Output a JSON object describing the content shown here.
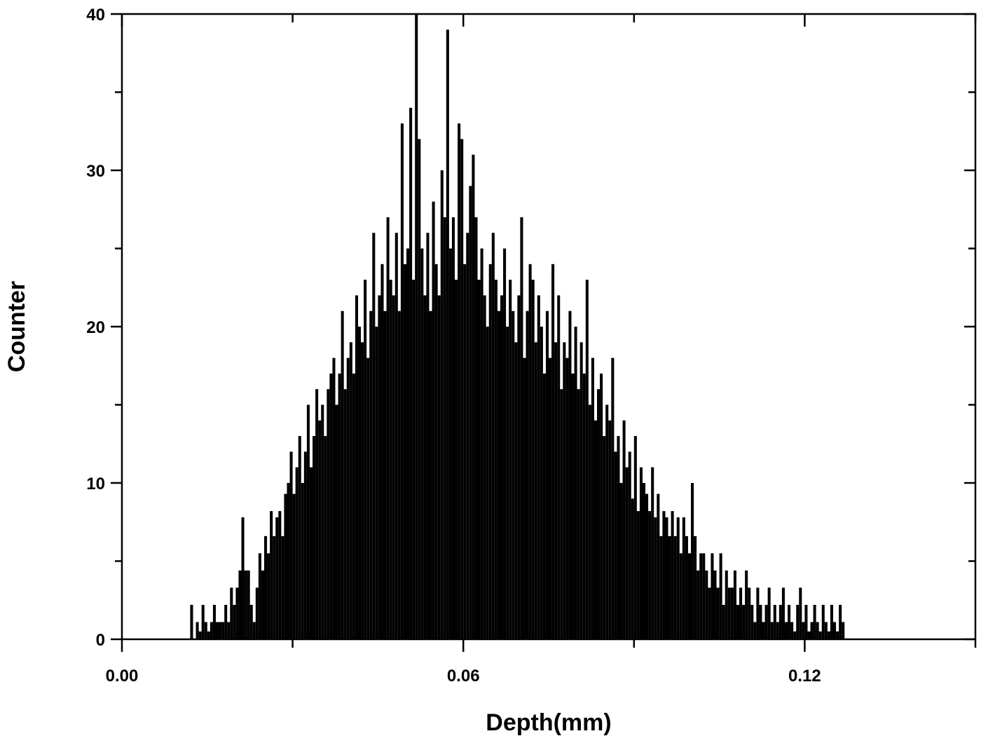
{
  "chart_data": {
    "type": "bar",
    "subtype": "histogram",
    "title": "",
    "xlabel": "Depth(mm)",
    "ylabel": "Counter",
    "xlim": [
      0,
      0.15
    ],
    "ylim": [
      0,
      40
    ],
    "xticks": [
      "0.00",
      "0.06",
      "0.12"
    ],
    "xtick_values": [
      0,
      0.06,
      0.12
    ],
    "yticks": [
      "0",
      "10",
      "20",
      "30",
      "40"
    ],
    "ytick_values": [
      0,
      10,
      20,
      30,
      40
    ],
    "grid": false,
    "bar_color": "#000000",
    "bin_start": 0.012,
    "bin_width": 0.0005,
    "values": [
      2.2,
      0,
      1.1,
      0.5,
      2.2,
      1.1,
      0.5,
      1.1,
      2.2,
      1.1,
      1.1,
      1.1,
      2.2,
      1.1,
      3.3,
      2.2,
      3.3,
      4.4,
      7.8,
      4.4,
      4.4,
      2.2,
      1.1,
      3.3,
      5.5,
      4.4,
      6.6,
      5.5,
      8.2,
      6.6,
      7.8,
      8.2,
      6.6,
      9.3,
      10,
      12,
      9.3,
      11,
      13,
      10,
      12,
      15,
      11,
      13,
      16,
      14,
      15,
      13,
      16,
      17,
      18,
      15,
      17,
      21,
      16,
      18,
      19,
      17,
      22,
      20,
      19,
      23,
      18,
      21,
      26,
      20,
      22,
      24,
      21,
      27,
      23,
      22,
      26,
      21,
      33,
      24,
      25,
      34,
      23,
      40,
      32,
      25,
      22,
      26,
      21,
      28,
      24,
      22,
      30,
      27,
      39,
      25,
      27,
      23,
      33,
      32,
      24,
      26,
      29,
      31,
      27,
      23,
      25,
      22,
      20,
      24,
      26,
      23,
      21,
      22,
      25,
      20,
      23,
      21,
      19,
      22,
      27,
      18,
      21,
      24,
      23,
      19,
      22,
      20,
      17,
      21,
      18,
      24,
      19,
      22,
      16,
      19,
      18,
      21,
      17,
      20,
      16,
      19,
      17,
      23,
      15,
      18,
      14,
      16,
      17,
      13,
      15,
      14,
      18,
      12,
      13,
      10,
      14,
      11,
      12,
      9,
      13,
      8.2,
      11,
      10,
      9.3,
      8.2,
      11,
      7.8,
      9.3,
      6.6,
      8.2,
      7.8,
      6.6,
      8.2,
      6.6,
      7.8,
      5.5,
      7.8,
      6.6,
      5.5,
      10,
      6.6,
      4.4,
      5.5,
      5.5,
      4.4,
      3.3,
      5.5,
      4.4,
      3.3,
      5.5,
      2.2,
      4.4,
      3.3,
      3.3,
      4.4,
      2.2,
      3.3,
      2.2,
      4.4,
      3.3,
      2.2,
      1.1,
      3.3,
      2.2,
      1.1,
      2.2,
      3.3,
      1.1,
      2.2,
      1.1,
      2.2,
      3.3,
      1.1,
      2.2,
      1.1,
      0.5,
      2.2,
      3.3,
      1.1,
      2.2,
      0.5,
      1.1,
      2.2,
      1.1,
      0.5,
      2.2,
      1.1,
      0.5,
      2.2,
      1.1,
      0.5,
      2.2,
      1.1
    ]
  }
}
